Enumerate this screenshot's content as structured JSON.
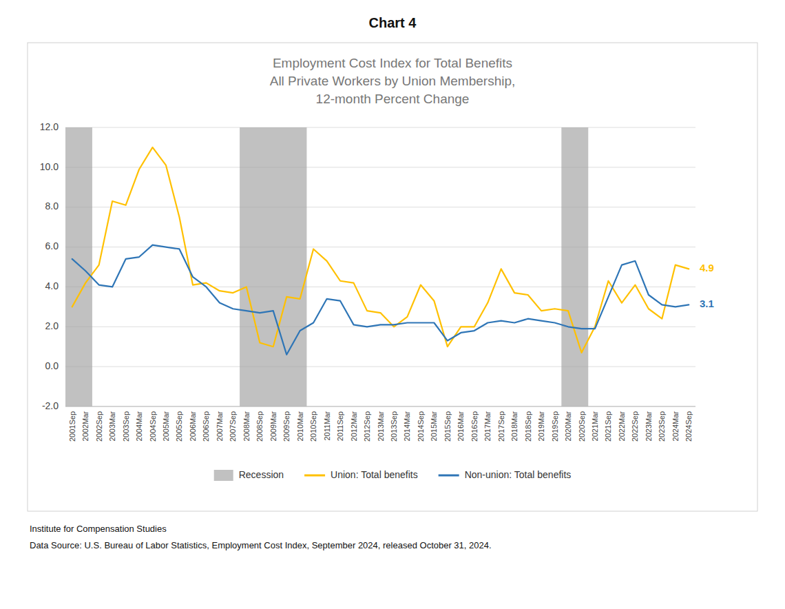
{
  "chart_data": {
    "type": "line",
    "title": "Chart 4",
    "subtitle": "Employment Cost Index for Total Benefits\nAll Private Workers by Union Membership,\n12-month Percent Change",
    "footnotes": [
      "Institute for Compensation Studies",
      "Data Source: U.S. Bureau of Labor Statistics, Employment Cost Index, September 2024, released October 31, 2024."
    ],
    "categories": [
      "2001Sep",
      "2002Mar",
      "2002Sep",
      "2003Mar",
      "2003Sep",
      "2004Mar",
      "2004Sep",
      "2005Mar",
      "2005Sep",
      "2006Mar",
      "2006Sep",
      "2007Mar",
      "2007Sep",
      "2008Mar",
      "2008Sep",
      "2009Mar",
      "2009Sep",
      "2010Mar",
      "2010Sep",
      "2011Mar",
      "2011Sep",
      "2012Mar",
      "2012Sep",
      "2013Mar",
      "2013Sep",
      "2014Mar",
      "2014Sep",
      "2015Mar",
      "2015Sep",
      "2016Mar",
      "2016Sep",
      "2017Mar",
      "2017Sep",
      "2018Mar",
      "2018Sep",
      "2019Mar",
      "2019Sep",
      "2020Mar",
      "2020Sep",
      "2021Mar",
      "2021Sep",
      "2022Mar",
      "2022Sep",
      "2023Mar",
      "2023Sep",
      "2024Mar",
      "2024Sep"
    ],
    "series": [
      {
        "name": "Union: Total benefits",
        "color": "#FFC000",
        "end_label": "4.9",
        "values": [
          3.0,
          4.2,
          5.1,
          8.3,
          8.1,
          9.9,
          11.0,
          10.1,
          7.5,
          4.1,
          4.2,
          3.8,
          3.7,
          4.0,
          1.2,
          1.0,
          3.5,
          3.4,
          5.9,
          5.3,
          4.3,
          4.2,
          2.8,
          2.7,
          2.0,
          2.5,
          4.1,
          3.3,
          1.0,
          2.0,
          2.0,
          3.2,
          4.9,
          3.7,
          3.6,
          2.8,
          2.9,
          2.8,
          0.7,
          2.0,
          4.3,
          3.2,
          4.1,
          2.9,
          2.4,
          5.1,
          4.9
        ]
      },
      {
        "name": "Non-union: Total benefits",
        "color": "#2E75B6",
        "end_label": "3.1",
        "values": [
          5.4,
          4.8,
          4.1,
          4.0,
          5.4,
          5.5,
          6.1,
          6.0,
          5.9,
          4.5,
          4.0,
          3.2,
          2.9,
          2.8,
          2.7,
          2.8,
          0.6,
          1.8,
          2.2,
          3.4,
          3.3,
          2.1,
          2.0,
          2.1,
          2.1,
          2.2,
          2.2,
          2.2,
          1.3,
          1.7,
          1.8,
          2.2,
          2.3,
          2.2,
          2.4,
          2.3,
          2.2,
          2.0,
          1.9,
          1.9,
          3.5,
          5.1,
          5.3,
          3.6,
          3.1,
          3.0,
          3.1
        ]
      }
    ],
    "bands": {
      "name": "Recession",
      "color": "#A0A0A0",
      "ranges": [
        [
          "2001Sep",
          "2002Mar"
        ],
        [
          "2008Mar",
          "2010Mar"
        ],
        [
          "2020Mar",
          "2020Sep"
        ]
      ]
    },
    "ylim": [
      -2.0,
      12.0
    ],
    "yticks": [
      {
        "value": -2,
        "label": "-2.0"
      },
      {
        "value": 0,
        "label": "0.0"
      },
      {
        "value": 2,
        "label": "2.0"
      },
      {
        "value": 4,
        "label": "4.0"
      },
      {
        "value": 6,
        "label": "6.0"
      },
      {
        "value": 8,
        "label": "8.0"
      },
      {
        "value": 10,
        "label": "10.0"
      },
      {
        "value": 12,
        "label": "12.0"
      }
    ],
    "grid": true,
    "legend": "bottom"
  }
}
